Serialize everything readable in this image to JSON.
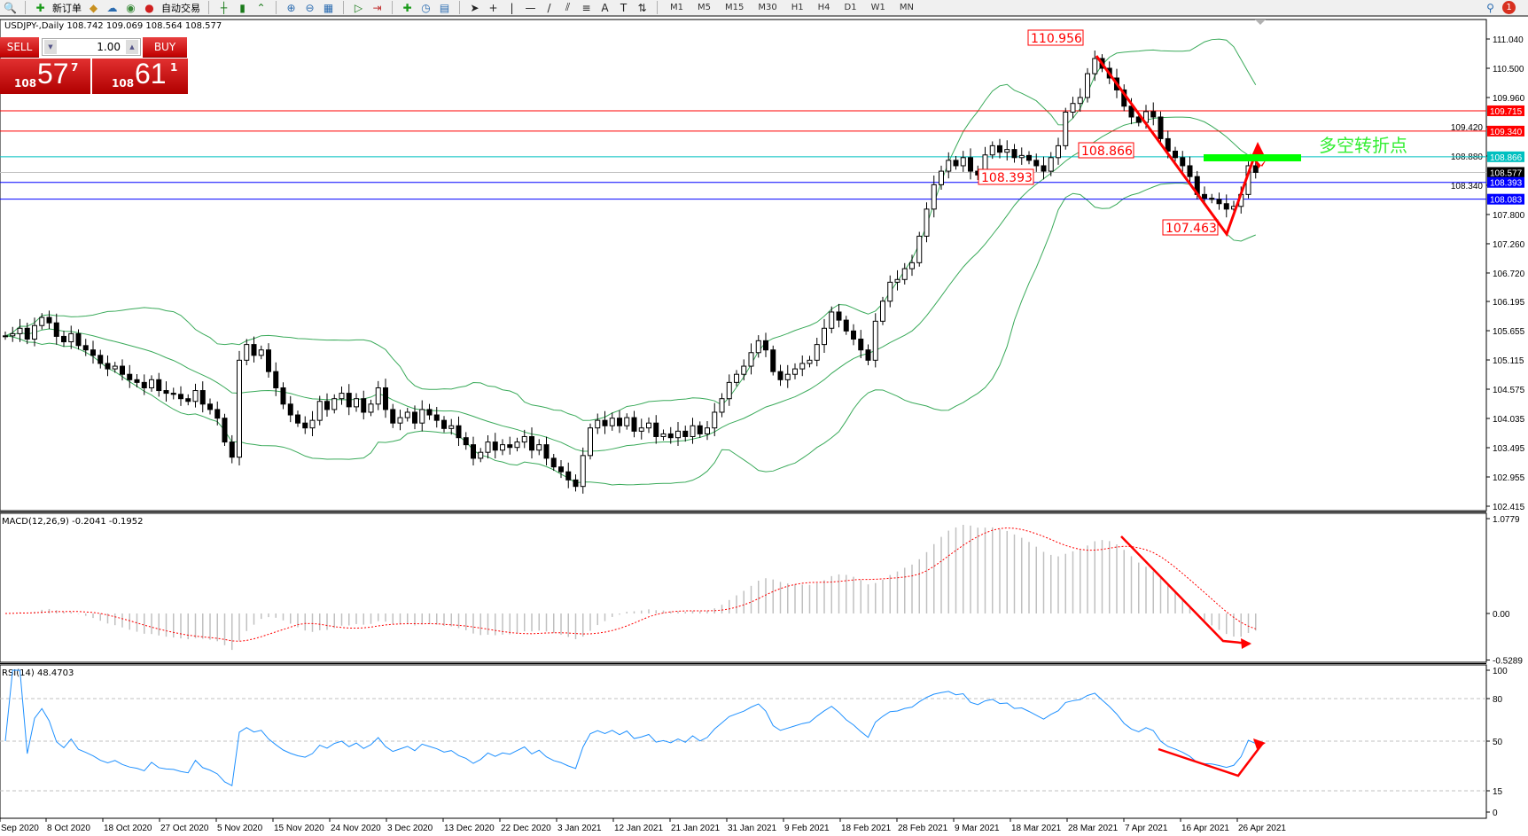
{
  "toolbar": {
    "new_order_label": "新订单",
    "auto_trading_label": "自动交易",
    "timeframes": [
      "M1",
      "M5",
      "M15",
      "M30",
      "H1",
      "H4",
      "D1",
      "W1",
      "MN"
    ],
    "notification_count": "1"
  },
  "chart_title": "USDJPY-,Daily  108.742 109.069 108.564 108.577",
  "one_click": {
    "sell_label": "SELL",
    "buy_label": "BUY",
    "lot": "1.00",
    "sell_price": {
      "prefix": "108",
      "big": "57",
      "sup": "7"
    },
    "buy_price": {
      "prefix": "108",
      "big": "61",
      "sup": "1"
    }
  },
  "colors": {
    "bands": "#3aaa5a",
    "resistance": "#ff0000",
    "pivot": "#00c0c0",
    "bid": "#c0c0c0",
    "support": "#0000ff",
    "annotation": "#ff0000",
    "pivot_zone": "#00ff00",
    "macd_hist": "#c0c0c0",
    "macd_signal": "#ff0000",
    "rsi": "#1e90ff"
  },
  "chart_data": [
    {
      "type": "candlestick",
      "symbol": "USDJPY-",
      "timeframe": "Daily",
      "ylim": [
        102.415,
        111.04
      ],
      "y_ticks": [
        "111.040",
        "110.500",
        "109.960",
        "109.420",
        "108.880",
        "108.340",
        "107.800",
        "107.260",
        "106.720",
        "106.195",
        "105.655",
        "105.115",
        "104.575",
        "104.035",
        "103.495",
        "102.955",
        "102.415"
      ],
      "x_ticks": [
        "Sep 2020",
        "8 Oct 2020",
        "18 Oct 2020",
        "27 Oct 2020",
        "5 Nov 2020",
        "15 Nov 2020",
        "24 Nov 2020",
        "3 Dec 2020",
        "13 Dec 2020",
        "22 Dec 2020",
        "3 Jan 2021",
        "12 Jan 2021",
        "21 Jan 2021",
        "31 Jan 2021",
        "9 Feb 2021",
        "18 Feb 2021",
        "28 Feb 2021",
        "9 Mar 2021",
        "18 Mar 2021",
        "28 Mar 2021",
        "7 Apr 2021",
        "16 Apr 2021",
        "26 Apr 2021"
      ],
      "closes": [
        105.56,
        105.6,
        105.7,
        105.5,
        105.75,
        105.9,
        105.8,
        105.55,
        105.45,
        105.6,
        105.38,
        105.3,
        105.2,
        105.05,
        104.95,
        105.0,
        104.85,
        104.75,
        104.7,
        104.6,
        104.75,
        104.55,
        104.5,
        104.48,
        104.4,
        104.35,
        104.55,
        104.3,
        104.2,
        104.04,
        103.6,
        103.32,
        105.11,
        105.4,
        105.2,
        105.3,
        104.9,
        104.6,
        104.3,
        104.1,
        103.95,
        103.86,
        104.0,
        104.35,
        104.2,
        104.4,
        104.5,
        104.25,
        104.4,
        104.15,
        104.3,
        104.6,
        104.2,
        103.95,
        104.05,
        104.15,
        103.95,
        104.2,
        104.1,
        104.0,
        103.85,
        103.9,
        103.68,
        103.55,
        103.3,
        103.41,
        103.6,
        103.45,
        103.55,
        103.5,
        103.6,
        103.7,
        103.45,
        103.55,
        103.3,
        103.14,
        103.05,
        102.9,
        102.78,
        103.35,
        103.86,
        104.0,
        103.9,
        104.04,
        103.9,
        104.05,
        103.8,
        103.86,
        103.95,
        103.7,
        103.75,
        103.68,
        103.8,
        103.7,
        103.9,
        103.75,
        103.86,
        104.15,
        104.4,
        104.7,
        104.85,
        105.0,
        105.25,
        105.47,
        105.3,
        104.9,
        104.75,
        104.85,
        104.95,
        105.05,
        105.11,
        105.4,
        105.7,
        106.0,
        105.85,
        105.65,
        105.5,
        105.3,
        105.11,
        105.83,
        106.2,
        106.55,
        106.6,
        106.8,
        106.91,
        107.4,
        107.9,
        108.35,
        108.6,
        108.8,
        108.7,
        108.85,
        108.6,
        108.53,
        108.9,
        109.07,
        108.95,
        109.0,
        108.85,
        108.89,
        108.8,
        108.7,
        108.6,
        108.85,
        109.07,
        109.69,
        109.85,
        109.96,
        110.4,
        110.68,
        110.5,
        110.32,
        110.1,
        109.8,
        109.6,
        109.5,
        109.7,
        109.6,
        109.2,
        108.97,
        108.85,
        108.7,
        108.5,
        108.17,
        108.1,
        108.08,
        108.0,
        107.9,
        107.95,
        108.17,
        108.7,
        108.577
      ],
      "indicators": [
        "Bollinger Bands(20,2)"
      ],
      "horizontal_lines": [
        {
          "price": "109.715",
          "role": "resistance"
        },
        {
          "price": "109.340",
          "role": "resistance"
        },
        {
          "price": "108.866",
          "role": "pivot"
        },
        {
          "price": "108.577",
          "role": "bid"
        },
        {
          "price": "108.393",
          "role": "support"
        },
        {
          "price": "108.083",
          "role": "support"
        }
      ],
      "annotations": {
        "high_label": "110.956",
        "mid_label": "108.866",
        "left_label": "108.393",
        "low_label": "107.463",
        "pivot_text": "多空转折点"
      }
    },
    {
      "type": "histogram+line",
      "label": "MACD(12,26,9) -0.2041 -0.1952",
      "y_ticks": [
        "1.0779",
        "0.00",
        "-0.5289"
      ],
      "ylim": [
        -0.5289,
        1.0779
      ]
    },
    {
      "type": "line",
      "label": "RSI(14) 48.4703",
      "y_ticks": [
        "100",
        "80",
        "50",
        "15",
        "0"
      ],
      "levels": [
        80,
        50,
        15
      ],
      "ylim": [
        0,
        100
      ]
    }
  ]
}
